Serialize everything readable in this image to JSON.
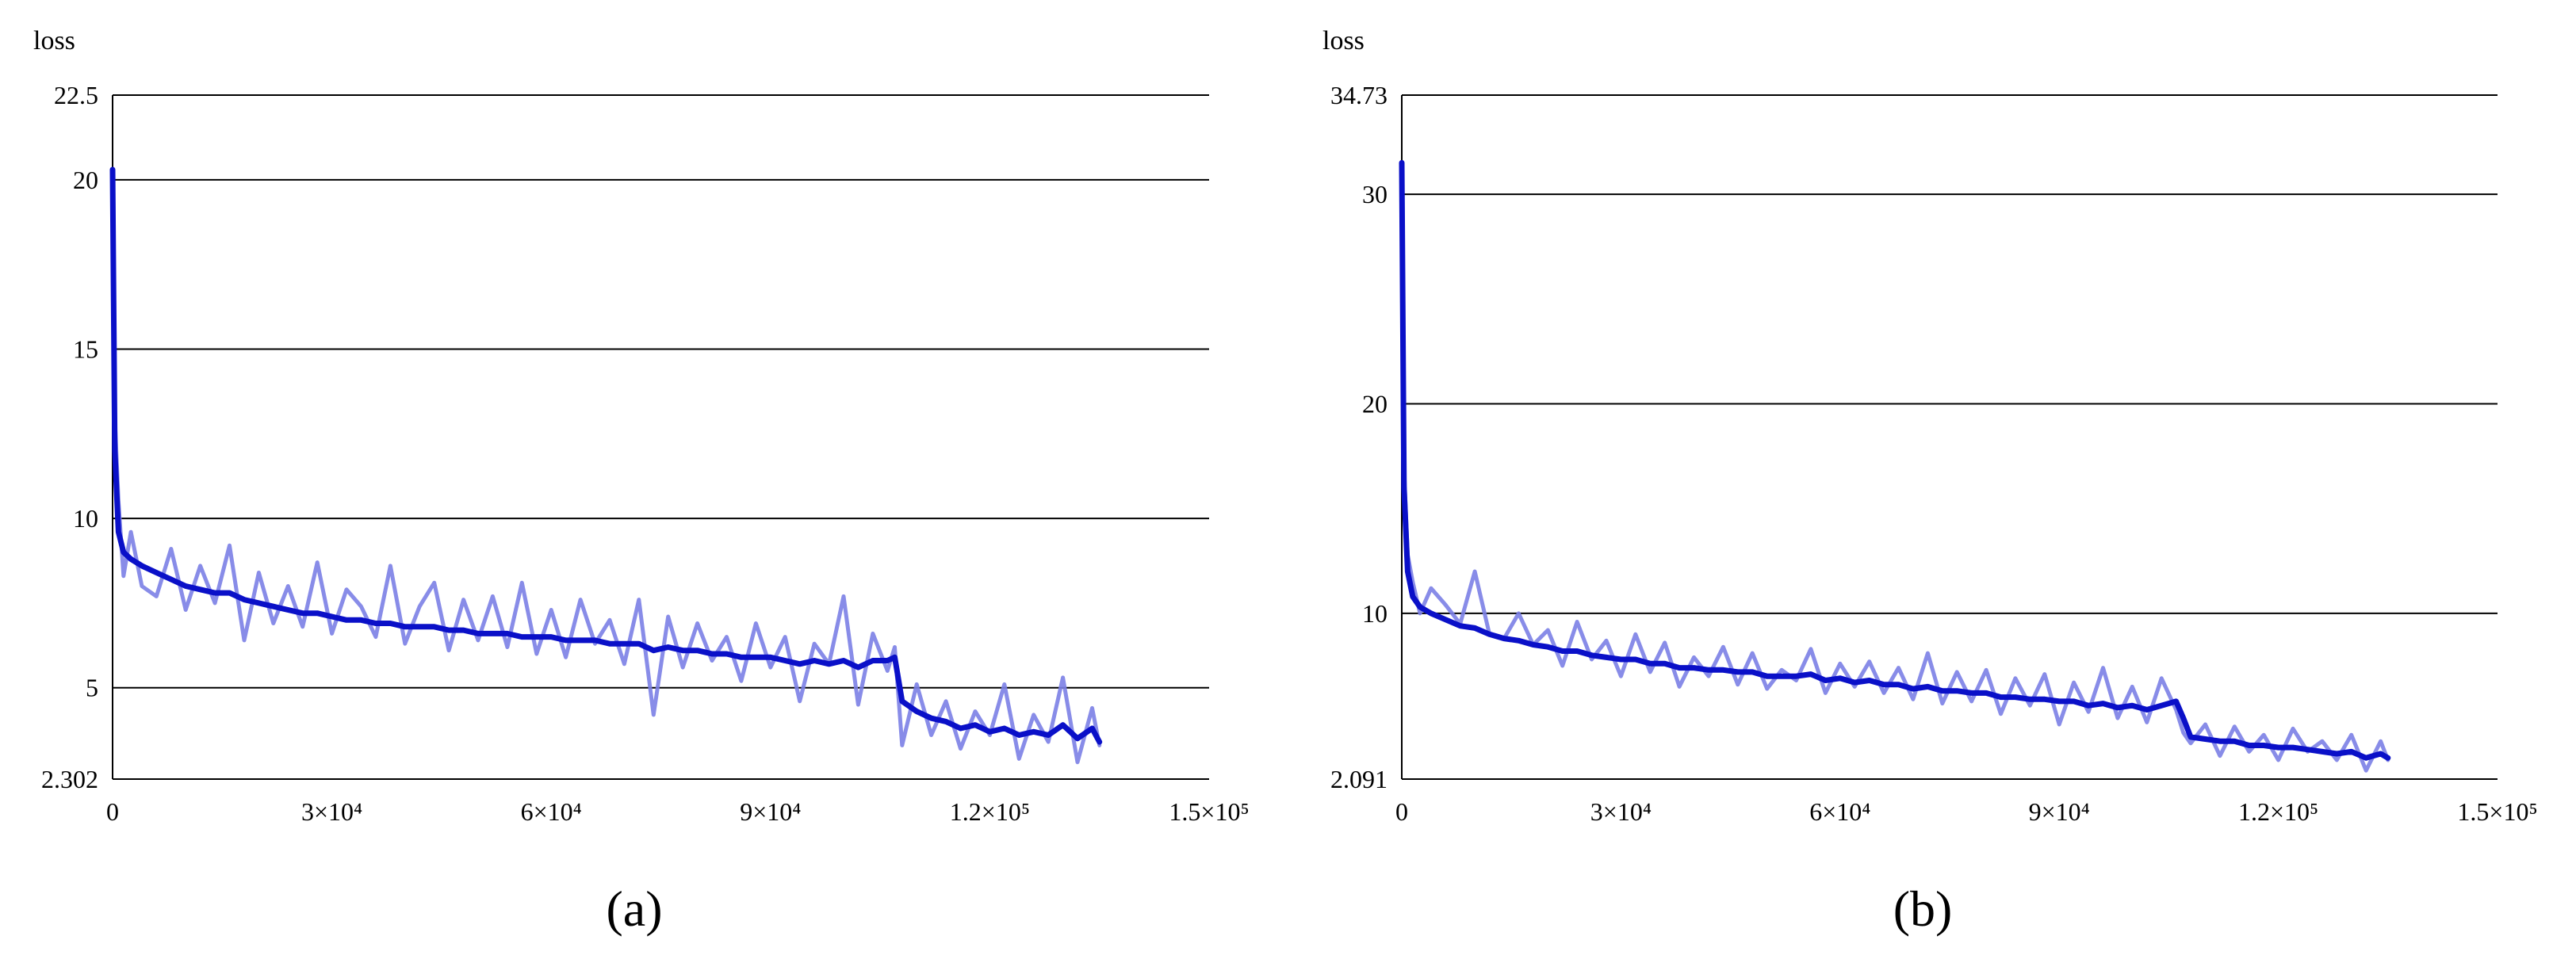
{
  "chart_data": [
    {
      "type": "line",
      "panel_label": "(a)",
      "ylabel": "loss",
      "xlim": [
        0,
        150000
      ],
      "ylim": [
        2.302,
        22.5
      ],
      "xticks": [
        {
          "value": 0,
          "label": "0"
        },
        {
          "value": 30000,
          "label": "3×10⁴"
        },
        {
          "value": 60000,
          "label": "6×10⁴"
        },
        {
          "value": 90000,
          "label": "9×10⁴"
        },
        {
          "value": 120000,
          "label": "1.2×10⁵"
        },
        {
          "value": 150000,
          "label": "1.5×10⁵"
        }
      ],
      "yticks": [
        {
          "value": 22.5,
          "label": "22.5"
        },
        {
          "value": 20,
          "label": "20"
        },
        {
          "value": 15,
          "label": "15"
        },
        {
          "value": 10,
          "label": "10"
        },
        {
          "value": 5,
          "label": "5"
        },
        {
          "value": 2.302,
          "label": "2.302"
        }
      ],
      "grid": "horizontal",
      "colors": {
        "raw": "#7b7fe6",
        "smoothed": "#0a10c8"
      },
      "series": [
        {
          "kind": "raw",
          "x": [
            0,
            300,
            800,
            1500,
            2500,
            4000,
            6000,
            8000,
            10000,
            12000,
            14000,
            16000,
            18000,
            20000,
            22000,
            24000,
            26000,
            28000,
            30000,
            32000,
            34000,
            36000,
            38000,
            40000,
            42000,
            44000,
            46000,
            48000,
            50000,
            52000,
            54000,
            56000,
            58000,
            60000,
            62000,
            64000,
            66000,
            68000,
            70000,
            72000,
            74000,
            76000,
            78000,
            80000,
            82000,
            84000,
            86000,
            88000,
            90000,
            92000,
            94000,
            96000,
            98000,
            100000,
            102000,
            104000,
            106000,
            107000,
            108000,
            110000,
            112000,
            114000,
            116000,
            118000,
            120000,
            122000,
            124000,
            126000,
            128000,
            130000,
            132000,
            134000,
            135000
          ],
          "values": [
            20.3,
            13.0,
            10.5,
            8.3,
            9.6,
            8.0,
            7.7,
            9.1,
            7.3,
            8.6,
            7.5,
            9.2,
            6.4,
            8.4,
            6.9,
            8.0,
            6.8,
            8.7,
            6.6,
            7.9,
            7.4,
            6.5,
            8.6,
            6.3,
            7.4,
            8.1,
            6.1,
            7.6,
            6.4,
            7.7,
            6.2,
            8.1,
            6.0,
            7.3,
            5.9,
            7.6,
            6.3,
            7.0,
            5.7,
            7.6,
            4.2,
            7.1,
            5.6,
            6.9,
            5.8,
            6.5,
            5.2,
            6.9,
            5.6,
            6.5,
            4.6,
            6.3,
            5.7,
            7.7,
            4.5,
            6.6,
            5.5,
            6.2,
            3.3,
            5.1,
            3.6,
            4.6,
            3.2,
            4.3,
            3.6,
            5.1,
            2.9,
            4.2,
            3.4,
            5.3,
            2.8,
            4.4,
            3.3
          ]
        },
        {
          "kind": "smoothed",
          "x": [
            0,
            300,
            800,
            1500,
            2500,
            4000,
            6000,
            8000,
            10000,
            12000,
            14000,
            16000,
            18000,
            20000,
            22000,
            24000,
            26000,
            28000,
            30000,
            32000,
            34000,
            36000,
            38000,
            40000,
            42000,
            44000,
            46000,
            48000,
            50000,
            52000,
            54000,
            56000,
            58000,
            60000,
            62000,
            64000,
            66000,
            68000,
            70000,
            72000,
            74000,
            76000,
            78000,
            80000,
            82000,
            84000,
            86000,
            88000,
            90000,
            92000,
            94000,
            96000,
            98000,
            100000,
            102000,
            104000,
            106000,
            107000,
            108000,
            110000,
            112000,
            114000,
            116000,
            118000,
            120000,
            122000,
            124000,
            126000,
            128000,
            130000,
            132000,
            134000,
            135000
          ],
          "values": [
            20.3,
            12.0,
            9.6,
            9.0,
            8.8,
            8.6,
            8.4,
            8.2,
            8.0,
            7.9,
            7.8,
            7.8,
            7.6,
            7.5,
            7.4,
            7.3,
            7.2,
            7.2,
            7.1,
            7.0,
            7.0,
            6.9,
            6.9,
            6.8,
            6.8,
            6.8,
            6.7,
            6.7,
            6.6,
            6.6,
            6.6,
            6.5,
            6.5,
            6.5,
            6.4,
            6.4,
            6.4,
            6.3,
            6.3,
            6.3,
            6.1,
            6.2,
            6.1,
            6.1,
            6.0,
            6.0,
            5.9,
            5.9,
            5.9,
            5.8,
            5.7,
            5.8,
            5.7,
            5.8,
            5.6,
            5.8,
            5.8,
            5.9,
            4.6,
            4.3,
            4.1,
            4.0,
            3.8,
            3.9,
            3.7,
            3.8,
            3.6,
            3.7,
            3.6,
            3.9,
            3.5,
            3.8,
            3.4
          ]
        }
      ]
    },
    {
      "type": "line",
      "panel_label": "(b)",
      "ylabel": "loss",
      "xlim": [
        0,
        150000
      ],
      "ylim": [
        2.091,
        34.73
      ],
      "xticks": [
        {
          "value": 0,
          "label": "0"
        },
        {
          "value": 30000,
          "label": "3×10⁴"
        },
        {
          "value": 60000,
          "label": "6×10⁴"
        },
        {
          "value": 90000,
          "label": "9×10⁴"
        },
        {
          "value": 120000,
          "label": "1.2×10⁵"
        },
        {
          "value": 150000,
          "label": "1.5×10⁵"
        }
      ],
      "yticks": [
        {
          "value": 34.73,
          "label": "34.73"
        },
        {
          "value": 30,
          "label": "30"
        },
        {
          "value": 20,
          "label": "20"
        },
        {
          "value": 10,
          "label": "10"
        },
        {
          "value": 2.091,
          "label": "2.091"
        }
      ],
      "grid": "horizontal",
      "colors": {
        "raw": "#7b7fe6",
        "smoothed": "#0a10c8"
      },
      "series": [
        {
          "kind": "raw",
          "x": [
            0,
            300,
            800,
            1500,
            2500,
            4000,
            6000,
            8000,
            10000,
            12000,
            14000,
            16000,
            18000,
            20000,
            22000,
            24000,
            26000,
            28000,
            30000,
            32000,
            34000,
            36000,
            38000,
            40000,
            42000,
            44000,
            46000,
            48000,
            50000,
            52000,
            54000,
            56000,
            58000,
            60000,
            62000,
            64000,
            66000,
            68000,
            70000,
            72000,
            74000,
            76000,
            78000,
            80000,
            82000,
            84000,
            86000,
            88000,
            90000,
            92000,
            94000,
            96000,
            98000,
            100000,
            102000,
            104000,
            106000,
            107000,
            108000,
            110000,
            112000,
            114000,
            116000,
            118000,
            120000,
            122000,
            124000,
            126000,
            128000,
            130000,
            132000,
            134000,
            135000
          ],
          "values": [
            31.5,
            17.0,
            12.8,
            11.5,
            10.0,
            11.2,
            10.4,
            9.5,
            12.0,
            9.0,
            8.8,
            10.0,
            8.5,
            9.2,
            7.5,
            9.6,
            7.8,
            8.7,
            7.0,
            9.0,
            7.2,
            8.6,
            6.5,
            7.9,
            7.0,
            8.4,
            6.6,
            8.1,
            6.4,
            7.3,
            6.8,
            8.3,
            6.2,
            7.6,
            6.5,
            7.7,
            6.2,
            7.4,
            5.9,
            8.1,
            5.7,
            7.2,
            5.8,
            7.3,
            5.2,
            6.9,
            5.6,
            7.1,
            4.7,
            6.7,
            5.3,
            7.4,
            5.0,
            6.5,
            4.8,
            6.9,
            5.4,
            4.3,
            3.8,
            4.7,
            3.2,
            4.6,
            3.4,
            4.2,
            3.0,
            4.5,
            3.4,
            3.9,
            3.0,
            4.2,
            2.5,
            3.9,
            3.0
          ]
        },
        {
          "kind": "smoothed",
          "x": [
            0,
            300,
            800,
            1500,
            2500,
            4000,
            6000,
            8000,
            10000,
            12000,
            14000,
            16000,
            18000,
            20000,
            22000,
            24000,
            26000,
            28000,
            30000,
            32000,
            34000,
            36000,
            38000,
            40000,
            42000,
            44000,
            46000,
            48000,
            50000,
            52000,
            54000,
            56000,
            58000,
            60000,
            62000,
            64000,
            66000,
            68000,
            70000,
            72000,
            74000,
            76000,
            78000,
            80000,
            82000,
            84000,
            86000,
            88000,
            90000,
            92000,
            94000,
            96000,
            98000,
            100000,
            102000,
            104000,
            106000,
            107000,
            108000,
            110000,
            112000,
            114000,
            116000,
            118000,
            120000,
            122000,
            124000,
            126000,
            128000,
            130000,
            132000,
            134000,
            135000
          ],
          "values": [
            31.5,
            16.0,
            12.0,
            10.8,
            10.3,
            10.0,
            9.7,
            9.4,
            9.3,
            9.0,
            8.8,
            8.7,
            8.5,
            8.4,
            8.2,
            8.2,
            8.0,
            7.9,
            7.8,
            7.8,
            7.6,
            7.6,
            7.4,
            7.4,
            7.3,
            7.3,
            7.2,
            7.2,
            7.0,
            7.0,
            7.0,
            7.1,
            6.8,
            6.9,
            6.7,
            6.8,
            6.6,
            6.6,
            6.4,
            6.5,
            6.3,
            6.3,
            6.2,
            6.2,
            6.0,
            6.0,
            5.9,
            5.9,
            5.8,
            5.8,
            5.6,
            5.7,
            5.5,
            5.6,
            5.4,
            5.6,
            5.8,
            5.0,
            4.1,
            4.0,
            3.9,
            3.9,
            3.7,
            3.7,
            3.6,
            3.6,
            3.5,
            3.4,
            3.3,
            3.4,
            3.1,
            3.3,
            3.1
          ]
        }
      ]
    }
  ]
}
